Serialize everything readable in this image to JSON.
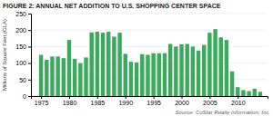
{
  "chart_data": {
    "type": "bar",
    "title": "FIGURE 2: ANNUAL NET ADDITION TO U.S. SHOPPING CENTER SPACE",
    "ylabel": "Millions of Square Feet (GLA)",
    "annotations": [
      "Source: CoStar Realty Information, Inc."
    ],
    "x": [
      1975,
      1976,
      1977,
      1978,
      1979,
      1980,
      1981,
      1982,
      1983,
      1984,
      1985,
      1986,
      1987,
      1988,
      1989,
      1990,
      1991,
      1992,
      1993,
      1994,
      1995,
      1996,
      1997,
      1998,
      1999,
      2000,
      2001,
      2002,
      2003,
      2004,
      2005,
      2006,
      2007,
      2008,
      2009,
      2010,
      2011,
      2012,
      2013,
      2014
    ],
    "values": [
      125,
      110,
      120,
      120,
      115,
      170,
      113,
      100,
      117,
      193,
      195,
      192,
      195,
      180,
      192,
      128,
      104,
      102,
      127,
      125,
      130,
      130,
      130,
      158,
      150,
      157,
      158,
      150,
      138,
      155,
      192,
      203,
      178,
      170,
      75,
      27,
      18,
      15,
      22,
      13
    ],
    "color": "#3aaa5c",
    "xlim": [
      1973.2,
      2015.3
    ],
    "xticks": [
      1975,
      1980,
      1985,
      1990,
      1995,
      2000,
      2005,
      2010
    ],
    "ylim": [
      0,
      250
    ],
    "yticks": [
      0,
      50,
      100,
      150,
      200,
      250
    ],
    "grid": true
  }
}
